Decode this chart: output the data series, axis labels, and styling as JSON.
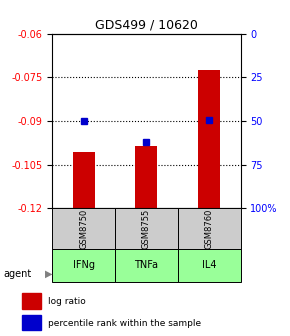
{
  "title": "GDS499 / 10620",
  "categories": [
    "IFNg",
    "TNFa",
    "IL4"
  ],
  "sample_ids": [
    "GSM8750",
    "GSM8755",
    "GSM8760"
  ],
  "bar_values": [
    -0.1005,
    -0.0985,
    -0.0725
  ],
  "percentile_values": [
    0.5,
    0.38,
    0.505
  ],
  "y_min": -0.12,
  "y_max": -0.06,
  "y_ticks_left": [
    -0.06,
    -0.075,
    -0.09,
    -0.105,
    -0.12
  ],
  "y_ticks_right_labels": [
    "100%",
    "75",
    "50",
    "25",
    "0"
  ],
  "grid_lines": [
    -0.075,
    -0.09,
    -0.105
  ],
  "bar_color": "#cc0000",
  "percentile_color": "#0000cc",
  "agent_bg_color": "#99ff99",
  "sample_bg_color": "#cccccc",
  "legend_bar_label": "log ratio",
  "legend_pct_label": "percentile rank within the sample",
  "agent_label": "agent"
}
